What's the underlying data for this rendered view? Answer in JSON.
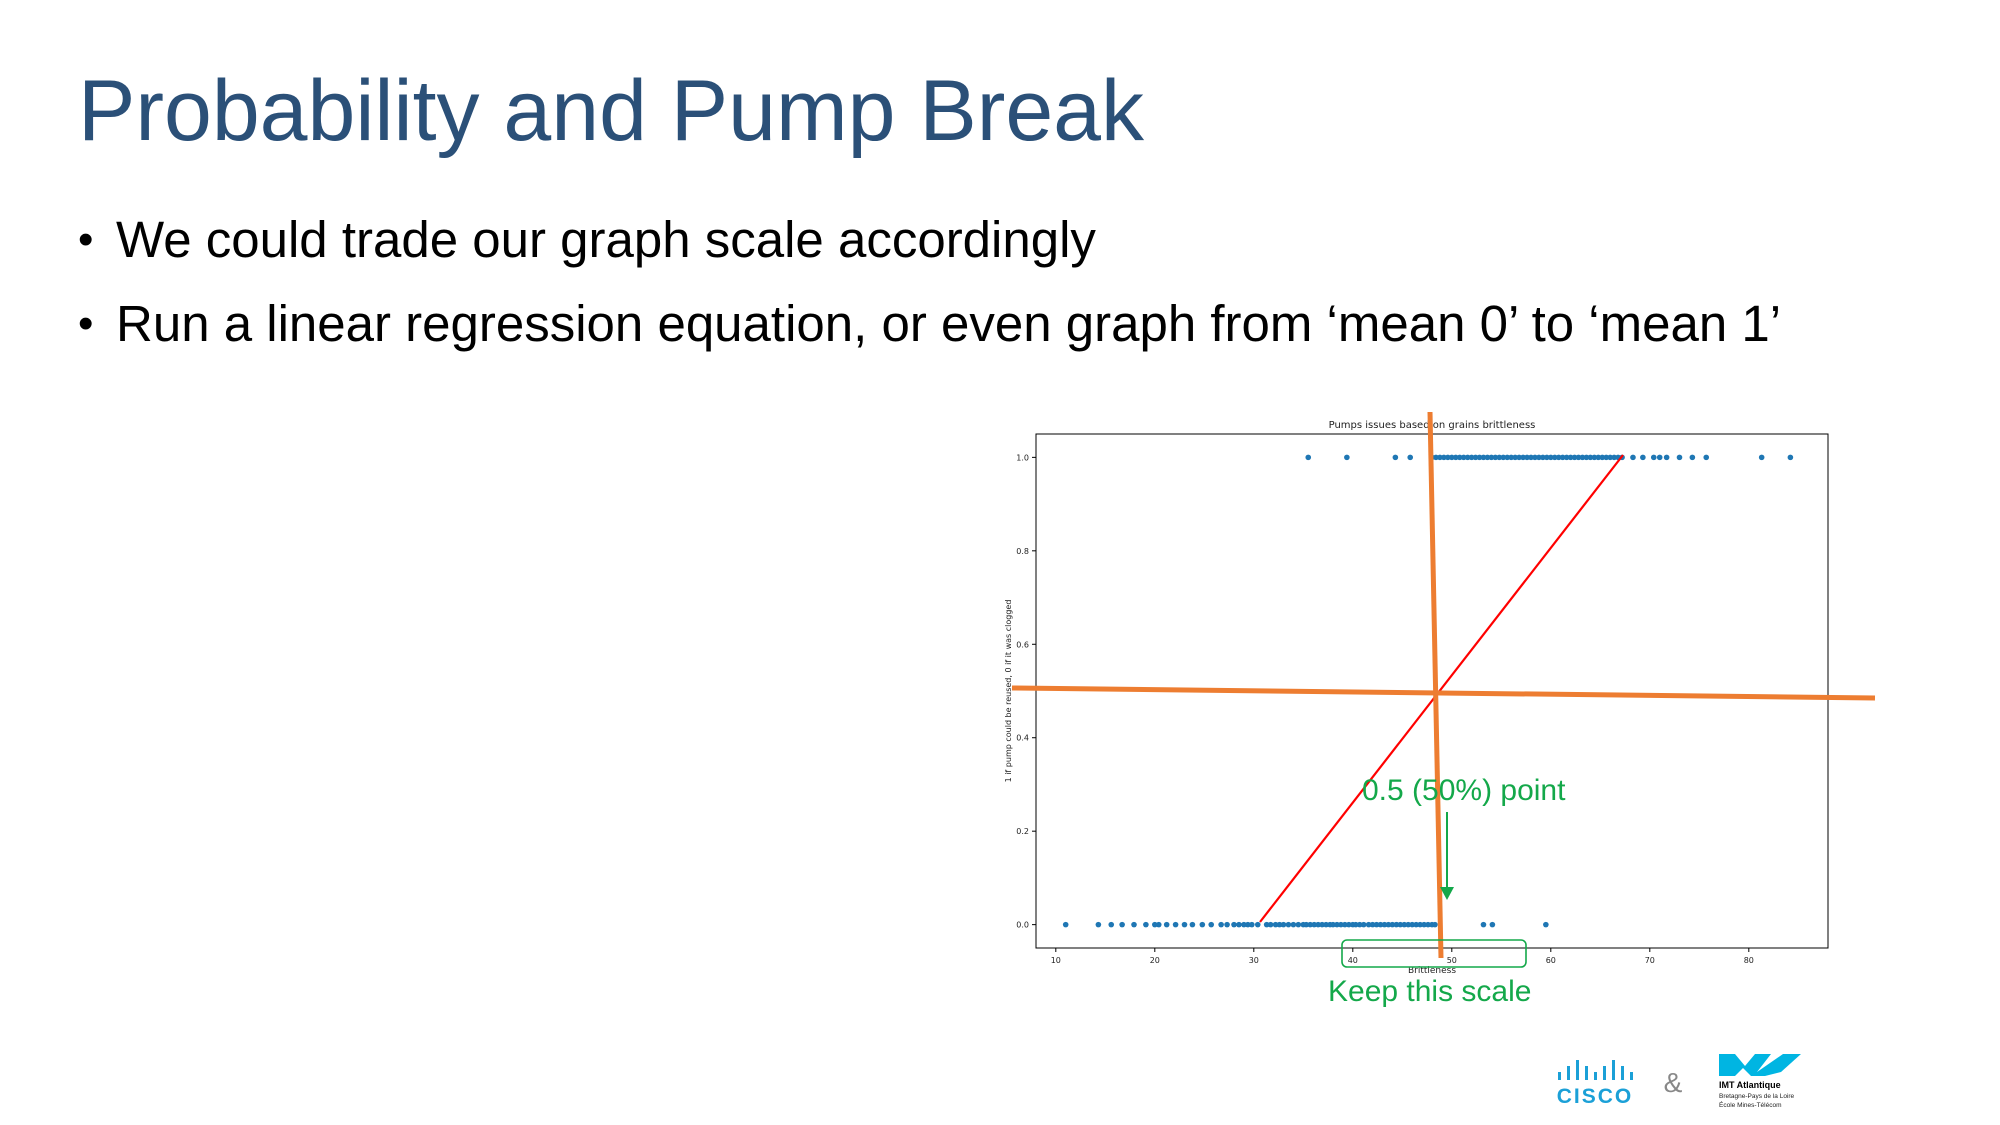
{
  "slide": {
    "title": "Probability and Pump Break",
    "bullets": [
      "We could trade our graph scale accordingly",
      "Run a linear regression equation, or even graph from ‘mean 0’ to ‘mean 1’"
    ]
  },
  "chart_data": {
    "type": "scatter",
    "title": "Pumps issues based on grains brittleness",
    "xlabel": "Brittleness",
    "ylabel": "1 if pump could be reused, 0 if it was clogged",
    "xlim": [
      8,
      88
    ],
    "ylim": [
      -0.05,
      1.05
    ],
    "x_ticks": [
      "10",
      "20",
      "30",
      "40",
      "50",
      "60",
      "70",
      "80"
    ],
    "y_ticks": [
      "0.0",
      "0.2",
      "0.4",
      "0.6",
      "0.8",
      "1.0"
    ],
    "grid": false,
    "point_color": "#1f77b4",
    "series": [
      {
        "y": 0,
        "x": [
          11,
          14.3,
          15.6,
          16.7,
          17.9,
          19.1,
          20.0,
          20.4,
          21.2,
          22.1,
          23.0,
          23.8,
          24.8,
          25.7,
          26.7,
          27.3,
          28.0,
          28.5,
          29.0,
          29.4,
          29.8,
          30.4,
          31.3,
          31.7,
          32.2,
          32.6,
          33.0,
          33.5,
          34.0,
          34.5,
          35.0,
          35.3,
          35.7,
          36.1,
          36.5,
          36.9,
          37.3,
          37.7,
          38.0,
          38.4,
          38.8,
          39.2,
          39.6,
          40.0,
          40.3,
          40.7,
          41.1,
          41.6,
          42.0,
          42.4,
          42.8,
          43.2,
          43.6,
          44.0,
          44.4,
          44.8,
          45.2,
          45.6,
          46.0,
          46.4,
          46.8,
          47.2,
          47.6,
          48.0,
          48.3,
          53.2,
          54.1,
          59.5
        ]
      },
      {
        "y": 1,
        "x": [
          35.5,
          39.4,
          44.3,
          45.8,
          48.0,
          48.4,
          48.8,
          49.2,
          49.6,
          50.0,
          50.4,
          50.8,
          51.2,
          51.6,
          52.0,
          52.4,
          52.8,
          53.2,
          53.6,
          54.0,
          54.4,
          54.8,
          55.2,
          55.6,
          56.0,
          56.4,
          56.8,
          57.2,
          57.6,
          58.0,
          58.4,
          58.8,
          59.2,
          59.6,
          60.0,
          60.4,
          60.8,
          61.2,
          61.6,
          62.0,
          62.4,
          62.8,
          63.2,
          63.6,
          64.0,
          64.4,
          64.8,
          65.2,
          65.6,
          66.0,
          66.4,
          66.8,
          67.2,
          68.3,
          69.3,
          70.4,
          71.0,
          71.7,
          73.0,
          74.3,
          75.7,
          81.3,
          84.2
        ]
      }
    ],
    "annotations": {
      "point_label": "0.5 (50%) point",
      "scale_label": "Keep this scale"
    }
  },
  "colors": {
    "title": "#2b5078",
    "fit_line": "#ff0000",
    "axis_lines": "#ed7d31",
    "callout": "#14a84a",
    "points": "#1f77b4",
    "cisco": "#1ba0d7",
    "imt": "#00b5e2"
  },
  "logos": {
    "cisco_text": "CISCO",
    "ampersand": "&",
    "imt_name": "IMT Atlantique",
    "imt_line1": "Bretagne-Pays de la Loire",
    "imt_line2": "École Mines-Télécom"
  }
}
